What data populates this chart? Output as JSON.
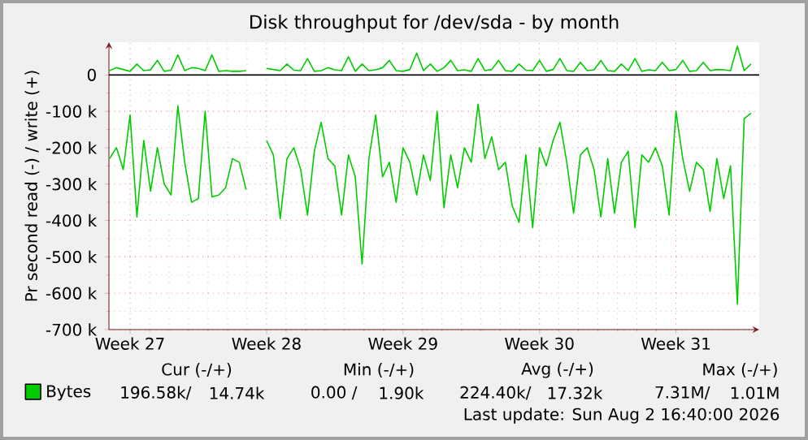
{
  "chart_data": {
    "type": "line",
    "title": "Disk throughput for /dev/sda - by month",
    "ylabel": "Pr second read (-) / write (+)",
    "categories": [
      null,
      null,
      null,
      "Week 27",
      null,
      null,
      null,
      null,
      null,
      null,
      null,
      null,
      null,
      null,
      null,
      null,
      null,
      null,
      null,
      null,
      null,
      null,
      null,
      "Week 28",
      null,
      null,
      null,
      null,
      null,
      null,
      null,
      null,
      null,
      null,
      null,
      null,
      null,
      null,
      null,
      null,
      null,
      null,
      null,
      "Week 29",
      null,
      null,
      null,
      null,
      null,
      null,
      null,
      null,
      null,
      null,
      null,
      null,
      null,
      null,
      null,
      null,
      null,
      null,
      null,
      "Week 30",
      null,
      null,
      null,
      null,
      null,
      null,
      null,
      null,
      null,
      null,
      null,
      null,
      null,
      null,
      null,
      null,
      null,
      null,
      null,
      "Week 31",
      null,
      null,
      null,
      null,
      null,
      null,
      null,
      null,
      null,
      null,
      null
    ],
    "series": [
      {
        "name": "Bytes",
        "color": "#00cc00",
        "values": [
          -230000,
          -200000,
          -260000,
          -110000,
          -390000,
          -180000,
          -320000,
          -200000,
          -300000,
          -330000,
          -85000,
          -240000,
          -350000,
          -340000,
          -100000,
          -335000,
          -330000,
          -310000,
          -230000,
          -240000,
          -315000,
          null,
          null,
          -180000,
          -220000,
          -395000,
          -230000,
          -200000,
          -260000,
          -385000,
          -210000,
          -130000,
          -230000,
          -250000,
          -385000,
          -220000,
          -280000,
          -520000,
          -230000,
          -110000,
          -280000,
          -240000,
          -350000,
          -200000,
          -240000,
          -330000,
          -220000,
          -290000,
          -100000,
          -365000,
          -220000,
          -310000,
          -200000,
          -240000,
          -80000,
          -230000,
          -170000,
          -260000,
          -240000,
          -360000,
          -405000,
          -220000,
          -420000,
          -200000,
          -250000,
          -180000,
          -130000,
          -240000,
          -380000,
          -220000,
          -200000,
          -260000,
          -390000,
          -230000,
          -380000,
          -240000,
          -210000,
          -420000,
          -220000,
          -240000,
          -200000,
          -250000,
          -385000,
          -100000,
          -230000,
          -320000,
          -240000,
          -260000,
          -375000,
          -230000,
          -340000,
          -250000,
          -630000,
          -120000,
          -105000
        ]
      },
      {
        "color": "#00cc00",
        "values": [
          12000,
          20000,
          15000,
          10000,
          30000,
          12000,
          14000,
          40000,
          10000,
          13000,
          55000,
          12000,
          20000,
          18000,
          12000,
          55000,
          10000,
          12000,
          10000,
          10000,
          12000,
          null,
          null,
          18000,
          15000,
          12000,
          30000,
          13000,
          12000,
          45000,
          10000,
          12000,
          20000,
          14000,
          12000,
          50000,
          10000,
          30000,
          12000,
          14000,
          20000,
          40000,
          12000,
          10000,
          15000,
          60000,
          12000,
          30000,
          10000,
          20000,
          40000,
          12000,
          14000,
          10000,
          45000,
          12000,
          15000,
          40000,
          12000,
          10000,
          30000,
          13000,
          12000,
          40000,
          10000,
          15000,
          45000,
          12000,
          10000,
          35000,
          12000,
          14000,
          40000,
          12000,
          10000,
          30000,
          12000,
          45000,
          10000,
          14000,
          12000,
          35000,
          12000,
          15000,
          40000,
          10000,
          12000,
          35000,
          12000,
          15000,
          14000,
          12000,
          79000,
          12000,
          30000
        ]
      }
    ],
    "ylim": [
      -700000,
      90000
    ],
    "yticks": [
      {
        "value": -700000,
        "label": "-700 k"
      },
      {
        "value": -600000,
        "label": "-600 k"
      },
      {
        "value": -500000,
        "label": "-500 k"
      },
      {
        "value": -400000,
        "label": "-400 k"
      },
      {
        "value": -300000,
        "label": "-300 k"
      },
      {
        "value": -200000,
        "label": "-200 k"
      },
      {
        "value": -100000,
        "label": "-100 k"
      },
      {
        "value": 0,
        "label": "0"
      }
    ],
    "ref_lines": [
      {
        "axis": "y",
        "value": 0,
        "color": "#000000"
      }
    ],
    "grid": true,
    "legend": "bottom left",
    "annotations": [
      "Cur (-/+)",
      "Min (-/+)",
      "Avg (-/+)",
      "Max (-/+)",
      "196.58k/",
      "14.74k",
      "0.00 /",
      "1.90k",
      "224.40k/",
      "17.32k",
      "7.31M/",
      "1.01M",
      "Last update: Sun Aug 2 16:40:00 2026"
    ]
  }
}
